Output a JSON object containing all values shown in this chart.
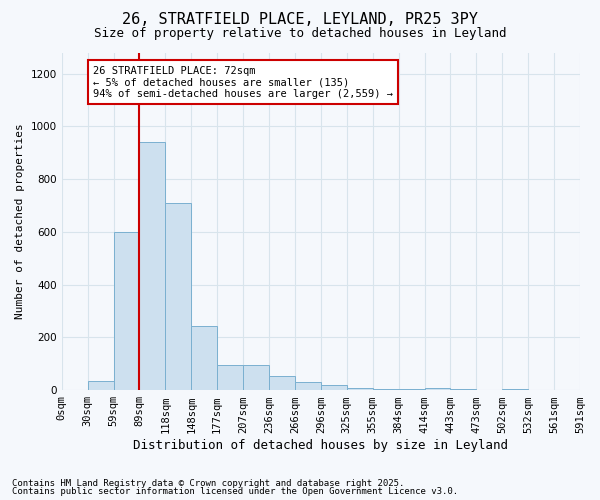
{
  "title_line1": "26, STRATFIELD PLACE, LEYLAND, PR25 3PY",
  "title_line2": "Size of property relative to detached houses in Leyland",
  "xlabel": "Distribution of detached houses by size in Leyland",
  "ylabel": "Number of detached properties",
  "bar_values": [
    0,
    35,
    600,
    940,
    710,
    245,
    95,
    95,
    55,
    30,
    20,
    10,
    5,
    3,
    8,
    3,
    0,
    3,
    0,
    0
  ],
  "bin_labels": [
    "0sqm",
    "30sqm",
    "59sqm",
    "89sqm",
    "118sqm",
    "148sqm",
    "177sqm",
    "207sqm",
    "236sqm",
    "266sqm",
    "296sqm",
    "325sqm",
    "355sqm",
    "384sqm",
    "414sqm",
    "443sqm",
    "473sqm",
    "502sqm",
    "532sqm",
    "561sqm",
    "591sqm"
  ],
  "bar_color": "#cde0ef",
  "bar_edge_color": "#7ab0d0",
  "grid_color": "#d8e4ec",
  "vline_position": 2,
  "vline_color": "#cc0000",
  "annotation_box_text": "26 STRATFIELD PLACE: 72sqm\n← 5% of detached houses are smaller (135)\n94% of semi-detached houses are larger (2,559) →",
  "annotation_box_color": "#cc0000",
  "annotation_box_fill": "#ffffff",
  "ylim": [
    0,
    1280
  ],
  "yticks": [
    0,
    200,
    400,
    600,
    800,
    1000,
    1200
  ],
  "footnote_line1": "Contains HM Land Registry data © Crown copyright and database right 2025.",
  "footnote_line2": "Contains public sector information licensed under the Open Government Licence v3.0.",
  "bg_color": "#f5f8fc",
  "title_fontsize": 11,
  "subtitle_fontsize": 9,
  "tick_fontsize": 7.5,
  "ylabel_fontsize": 8,
  "xlabel_fontsize": 9
}
